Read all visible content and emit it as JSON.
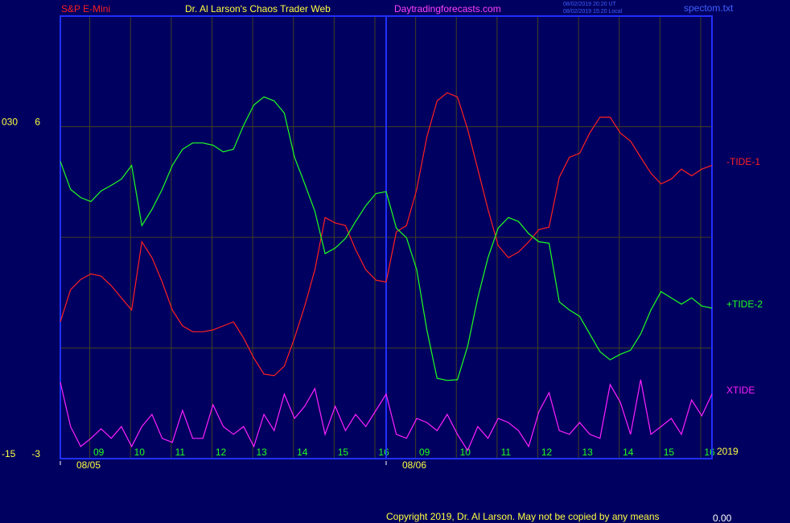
{
  "chart_data": {
    "type": "line",
    "header": {
      "symbol": "S&P E-Mini",
      "title": "Dr. Al Larson's Chaos Trader Web",
      "site": "Daytradingforecasts.com",
      "stamp_ut": "08/02/2019 20:20 UT",
      "stamp_local": "08/02/2019 15:20 Local",
      "file": "spectom.txt"
    },
    "footer": {
      "copyright": "Copyright 2019, Dr. Al Larson. May not be copied by any means",
      "reading": "0.00",
      "year": "2019"
    },
    "x": [
      0,
      0.25,
      0.5,
      0.75,
      1,
      1.25,
      1.5,
      1.75,
      2,
      2.25,
      2.5,
      2.75,
      3,
      3.25,
      3.5,
      3.75,
      4,
      4.25,
      4.5,
      4.75,
      5,
      5.25,
      5.5,
      5.75,
      6,
      6.25,
      6.5,
      6.75,
      7,
      7.25,
      7.5,
      7.75,
      8,
      8.25,
      8.5,
      8.75,
      9,
      9.25,
      9.5,
      9.75,
      10,
      10.25,
      10.5,
      10.75,
      11,
      11.25,
      11.5,
      11.75,
      12,
      12.25,
      12.5,
      12.75,
      13,
      13.25,
      13.5,
      13.75,
      14,
      14.25,
      14.5,
      14.75,
      15,
      15.25,
      15.5,
      15.75,
      16
    ],
    "xlim": [
      0,
      16
    ],
    "xticks": [
      {
        "value": 1,
        "label": "09"
      },
      {
        "value": 2,
        "label": "10"
      },
      {
        "value": 3,
        "label": "11"
      },
      {
        "value": 4,
        "label": "12"
      },
      {
        "value": 5,
        "label": "13"
      },
      {
        "value": 6,
        "label": "14"
      },
      {
        "value": 7,
        "label": "15"
      },
      {
        "value": 8,
        "label": "16"
      },
      {
        "value": 9,
        "label": "09"
      },
      {
        "value": 10,
        "label": "10"
      },
      {
        "value": 11,
        "label": "11"
      },
      {
        "value": 12,
        "label": "12"
      },
      {
        "value": 13,
        "label": "13"
      },
      {
        "value": 14,
        "label": "14"
      },
      {
        "value": 15,
        "label": "15"
      },
      {
        "value": 16,
        "label": "16"
      }
    ],
    "date_ticks": [
      {
        "value": 0,
        "label": "08/05"
      },
      {
        "value": 8,
        "label": "08/06"
      }
    ],
    "ylim": [
      -3,
      9
    ],
    "yticks": [
      -3,
      6
    ],
    "ygrid": [
      0,
      3,
      6
    ],
    "y2lim": [
      -15,
      45
    ],
    "y2ticks": [
      -15,
      {
        "value": 30,
        "label": "030"
      }
    ],
    "grid": true,
    "series": [
      {
        "name": "-TIDE-1",
        "color": "#ff2020",
        "values": [
          0.71,
          1.58,
          1.86,
          2.01,
          1.95,
          1.69,
          1.36,
          1.03,
          2.88,
          2.45,
          1.79,
          1.03,
          0.6,
          0.44,
          0.44,
          0.49,
          0.6,
          0.71,
          0.27,
          -0.27,
          -0.71,
          -0.75,
          -0.49,
          0.27,
          1.14,
          2.12,
          3.54,
          3.39,
          3.32,
          2.67,
          2.12,
          1.84,
          1.79,
          3.15,
          3.32,
          4.3,
          5.72,
          6.7,
          6.92,
          6.81,
          5.93,
          4.85,
          3.76,
          2.78,
          2.45,
          2.6,
          2.88,
          3.21,
          3.28,
          4.63,
          5.17,
          5.28,
          5.83,
          6.26,
          6.26,
          5.83,
          5.61,
          5.17,
          4.74,
          4.45,
          4.58,
          4.85,
          4.67,
          4.85,
          4.95
        ]
      },
      {
        "name": "+TIDE-2",
        "color": "#20ff20",
        "values": [
          5.06,
          4.3,
          4.08,
          3.97,
          4.26,
          4.41,
          4.58,
          4.95,
          3.32,
          3.76,
          4.3,
          4.95,
          5.39,
          5.56,
          5.56,
          5.5,
          5.32,
          5.39,
          6.04,
          6.59,
          6.81,
          6.7,
          6.37,
          5.17,
          4.45,
          3.71,
          2.56,
          2.71,
          2.97,
          3.43,
          3.86,
          4.19,
          4.24,
          3.25,
          2.99,
          2.12,
          0.49,
          -0.82,
          -0.88,
          -0.86,
          0.05,
          1.36,
          2.45,
          3.25,
          3.54,
          3.43,
          3.1,
          2.88,
          2.84,
          1.25,
          1.03,
          0.86,
          0.38,
          -0.1,
          -0.32,
          -0.17,
          -0.06,
          0.38,
          1.03,
          1.53,
          1.36,
          1.19,
          1.36,
          1.14,
          1.08
        ]
      },
      {
        "name": "XTIDE",
        "color": "#ff20ff",
        "values": [
          -0.93,
          -2.13,
          -2.67,
          -2.45,
          -2.19,
          -2.45,
          -2.13,
          -2.67,
          -2.13,
          -1.8,
          -2.45,
          -2.56,
          -1.69,
          -2.45,
          -2.45,
          -1.54,
          -2.13,
          -2.34,
          -2.13,
          -2.67,
          -1.8,
          -2.24,
          -1.25,
          -1.91,
          -1.58,
          -1.1,
          -2.34,
          -1.58,
          -2.24,
          -1.8,
          -2.13,
          -1.69,
          -1.25,
          -2.34,
          -2.45,
          -1.91,
          -2.02,
          -2.24,
          -1.8,
          -2.34,
          -2.78,
          -2.13,
          -2.45,
          -1.91,
          -2.02,
          -2.24,
          -2.67,
          -1.73,
          -1.21,
          -2.24,
          -2.34,
          -2.02,
          -2.34,
          -2.45,
          -0.99,
          -1.47,
          -2.34,
          -0.86,
          -2.34,
          -2.13,
          -1.91,
          -2.34,
          -1.41,
          -1.84,
          -1.25
        ]
      }
    ]
  }
}
